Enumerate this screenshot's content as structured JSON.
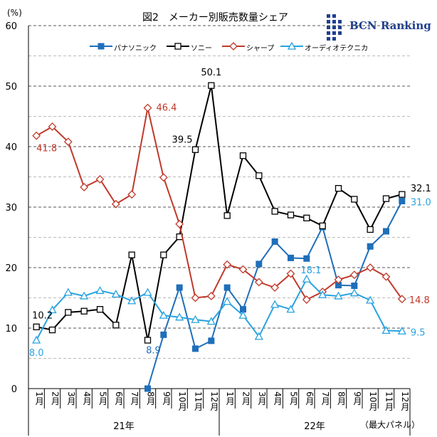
{
  "header": {
    "title": "図2　メーカー別販売数量シェア",
    "unit": "(%)",
    "brand": "BCN Ranking"
  },
  "chart_data": {
    "type": "line",
    "title": "図2　メーカー別販売数量シェア",
    "ylabel": "(%)",
    "ylim": [
      0,
      60
    ],
    "yticks": [
      0,
      10,
      20,
      30,
      40,
      50,
      60
    ],
    "minor_gridlines": [
      5,
      15,
      25,
      35,
      45,
      55
    ],
    "categories": [
      "1月",
      "2月",
      "3月",
      "4月",
      "5月",
      "6月",
      "7月",
      "8月",
      "9月",
      "10月",
      "11月",
      "12月",
      "1月",
      "2月",
      "3月",
      "4月",
      "5月",
      "6月",
      "7月",
      "8月",
      "9月",
      "10月",
      "11月",
      "12月"
    ],
    "groups": [
      {
        "label": "21年",
        "start": 0,
        "end": 11
      },
      {
        "label": "22年",
        "start": 12,
        "end": 23
      }
    ],
    "footnote": "（最大パネル）",
    "series": [
      {
        "name": "パナソニック",
        "color": "#1f6fba",
        "marker": "filled-square",
        "values": [
          null,
          null,
          null,
          null,
          null,
          null,
          null,
          0.0,
          8.9,
          16.7,
          6.6,
          7.9,
          16.7,
          13.1,
          20.6,
          24.3,
          21.6,
          21.5,
          26.7,
          17.1,
          17.0,
          23.5,
          26.0,
          31.0
        ]
      },
      {
        "name": "ソニー",
        "color": "#000000",
        "marker": "open-square",
        "values": [
          10.2,
          9.7,
          12.6,
          12.8,
          13.1,
          10.5,
          22.1,
          8.0,
          22.1,
          25.1,
          39.5,
          50.1,
          28.6,
          38.5,
          35.2,
          29.3,
          28.7,
          28.2,
          26.9,
          33.1,
          31.3,
          26.3,
          31.4,
          32.1
        ]
      },
      {
        "name": "シャープ",
        "color": "#c0392b",
        "marker": "open-diamond",
        "values": [
          41.8,
          43.3,
          40.8,
          33.3,
          34.6,
          30.5,
          32.1,
          46.4,
          34.9,
          27.2,
          15.0,
          15.3,
          20.5,
          19.7,
          17.6,
          16.7,
          19.0,
          14.7,
          16.0,
          18.0,
          18.8,
          20.0,
          18.5,
          14.8
        ]
      },
      {
        "name": "オーディオテクニカ",
        "color": "#29a3e0",
        "marker": "open-triangle",
        "values": [
          8.0,
          13.0,
          15.9,
          15.3,
          16.2,
          15.6,
          14.5,
          15.9,
          12.1,
          11.8,
          11.4,
          11.1,
          14.4,
          12.1,
          8.6,
          13.9,
          13.1,
          18.1,
          15.5,
          15.3,
          15.8,
          14.6,
          9.6,
          9.5
        ]
      }
    ],
    "annotations": [
      {
        "text": "41.8",
        "series": "シャープ",
        "index": 0,
        "color": "#c0392b"
      },
      {
        "text": "46.4",
        "series": "シャープ",
        "index": 7,
        "color": "#c0392b"
      },
      {
        "text": "14.8",
        "series": "シャープ",
        "index": 23,
        "color": "#c0392b"
      },
      {
        "text": "10.2",
        "series": "ソニー",
        "index": 0,
        "color": "#000000"
      },
      {
        "text": "39.5",
        "series": "ソニー",
        "index": 10,
        "color": "#000000"
      },
      {
        "text": "50.1",
        "series": "ソニー",
        "index": 11,
        "color": "#000000"
      },
      {
        "text": "32.1",
        "series": "ソニー",
        "index": 23,
        "color": "#000000"
      },
      {
        "text": "8.0",
        "series": "オーディオテクニカ",
        "index": 0,
        "color": "#29a3e0"
      },
      {
        "text": "18.1",
        "series": "オーディオテクニカ",
        "index": 17,
        "color": "#29a3e0"
      },
      {
        "text": "9.5",
        "series": "オーディオテクニカ",
        "index": 23,
        "color": "#29a3e0"
      },
      {
        "text": "8.9",
        "series": "パナソニック",
        "index": 8,
        "color": "#1f6fba"
      },
      {
        "text": "31.0",
        "series": "パナソニック",
        "index": 23,
        "color": "#29a3e0"
      }
    ]
  }
}
